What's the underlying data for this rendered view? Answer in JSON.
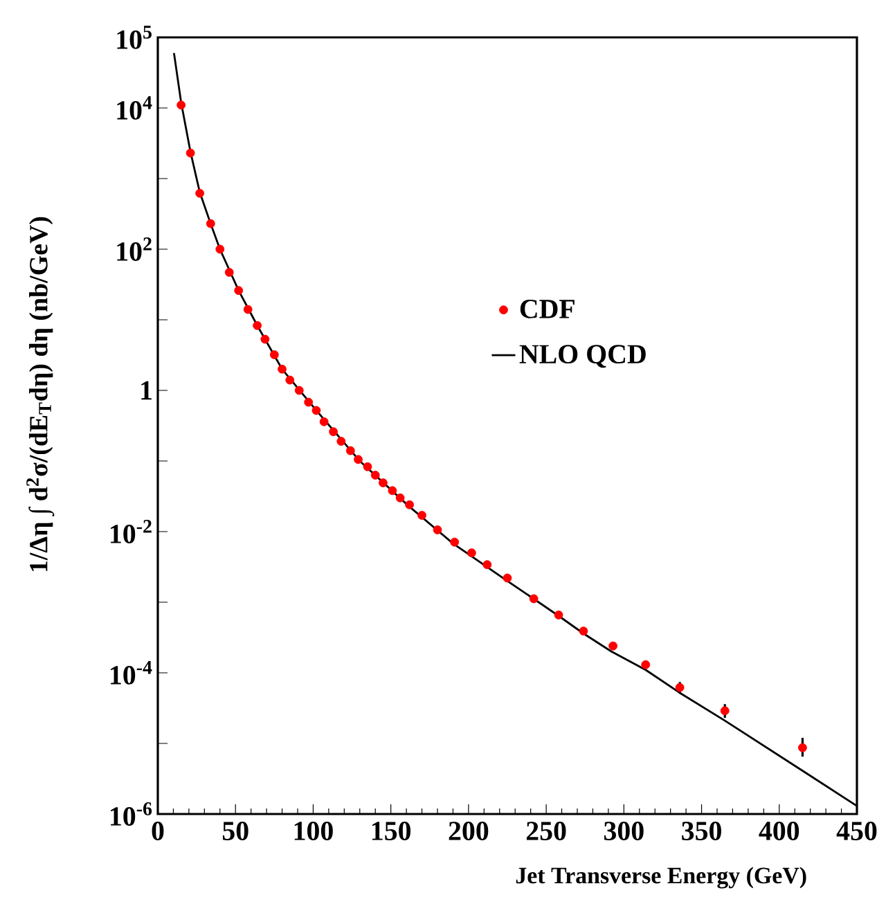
{
  "chart_data": {
    "type": "scatter",
    "xlabel": "Jet Transverse Energy      (GeV)",
    "ylabel": "1/Δη ∫ d$^{2}$σ/(dE$_{T}$dη) dη      (nb/GeV)",
    "log": "y",
    "xlim": [
      0,
      450
    ],
    "xticks": [
      0,
      50,
      100,
      150,
      200,
      250,
      300,
      350,
      400,
      450
    ],
    "ylim": [
      1e-06,
      100000
    ],
    "yticks": [
      {
        "value": 100000,
        "label": "10$^{5}$"
      },
      {
        "value": 10000,
        "label": "10$^{4}$"
      },
      {
        "value": 1000,
        "label": null
      },
      {
        "value": 100,
        "label": "10$^{2}$"
      },
      {
        "value": 10,
        "label": null
      },
      {
        "value": 1,
        "label": "1"
      },
      {
        "value": 0.1,
        "label": null
      },
      {
        "value": 0.01,
        "label": "10$^{-2}$"
      },
      {
        "value": 0.001,
        "label": null
      },
      {
        "value": 0.0001,
        "label": "10$^{-4}$"
      },
      {
        "value": 1e-05,
        "label": null
      },
      {
        "value": 1e-06,
        "label": "10$^{-6}$"
      }
    ],
    "legend": "right",
    "series": [
      {
        "name": "CDF",
        "type": "scatter",
        "marker": "circle",
        "color": "#ff0000",
        "x": [
          15,
          21,
          27,
          34,
          40,
          46,
          52,
          58,
          64,
          69,
          75,
          80,
          85,
          91,
          97,
          102,
          107,
          113,
          118,
          124,
          129,
          135,
          140,
          145,
          151,
          156,
          162,
          170,
          180,
          191,
          202,
          212,
          225,
          242,
          258,
          274,
          293,
          314,
          336,
          365,
          415
        ],
        "values": [
          11000,
          2300,
          620,
          230,
          100,
          47,
          26,
          14,
          8.3,
          5.3,
          3.2,
          2.0,
          1.4,
          1.0,
          0.68,
          0.52,
          0.36,
          0.26,
          0.19,
          0.14,
          0.105,
          0.083,
          0.063,
          0.049,
          0.038,
          0.03,
          0.024,
          0.017,
          0.0106,
          0.0071,
          0.005,
          0.0034,
          0.0022,
          0.00112,
          0.00066,
          0.00039,
          0.00024,
          0.00013,
          6.2e-05,
          2.9e-05,
          8.7e-06
        ],
        "errors": [
          null,
          null,
          null,
          null,
          null,
          null,
          null,
          null,
          null,
          null,
          null,
          null,
          null,
          null,
          null,
          null,
          null,
          null,
          null,
          null,
          null,
          null,
          null,
          null,
          null,
          null,
          null,
          null,
          null,
          null,
          null,
          null,
          null,
          null,
          null,
          null,
          null,
          null,
          [
            5.1e-05,
            7.4e-05
          ],
          [
            2.3e-05,
            3.6e-05
          ],
          [
            6.5e-06,
            1.2e-05
          ]
        ]
      },
      {
        "name": "NLO QCD",
        "type": "line",
        "line_style": "solid",
        "marker": "none",
        "color": "#000000",
        "x": [
          10.4,
          15,
          21,
          27,
          34,
          40,
          52,
          64,
          80,
          102,
          130,
          161.5,
          190,
          225,
          258,
          274,
          292,
          314,
          336,
          365,
          415,
          450
        ],
        "values": [
          60000,
          12000,
          2400,
          640,
          230,
          100,
          26,
          8.3,
          2.0,
          0.52,
          0.1,
          0.023,
          0.0068,
          0.002,
          0.00064,
          0.00036,
          0.0002,
          0.00011,
          5.2e-05,
          2.1e-05,
          4.1e-06,
          1.3e-06
        ]
      }
    ]
  }
}
